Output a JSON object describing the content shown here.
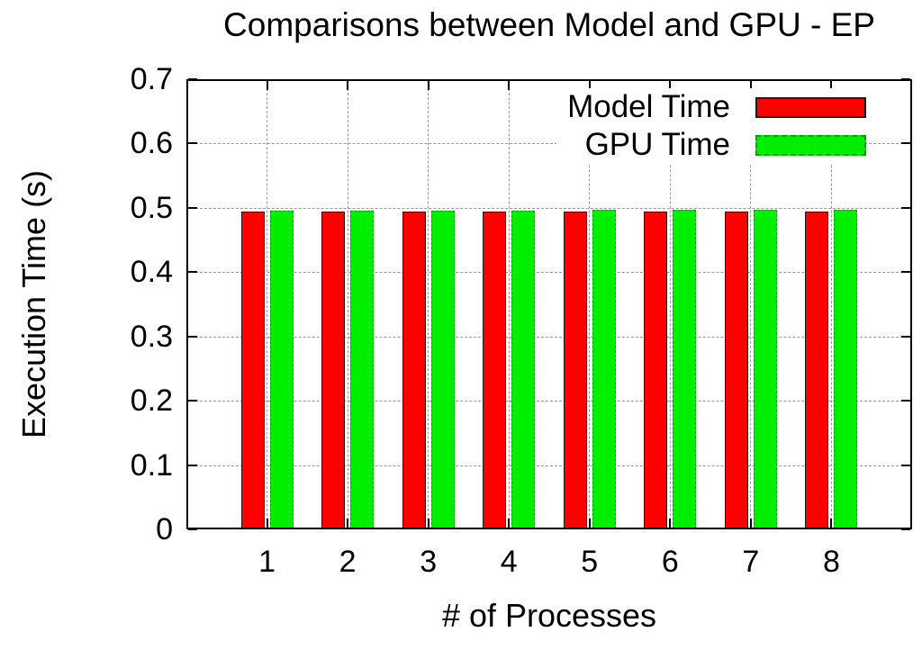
{
  "chart_data": {
    "type": "bar",
    "title": "Comparisons between Model and GPU - EP",
    "xlabel": "# of Processes",
    "ylabel": "Execution Time (s)",
    "categories": [
      "1",
      "2",
      "3",
      "4",
      "5",
      "6",
      "7",
      "8"
    ],
    "series": [
      {
        "name": "Model Time",
        "color": "#ff0000",
        "border_style": "solid",
        "border_color": "#1a1a1a",
        "values": [
          0.494,
          0.494,
          0.494,
          0.494,
          0.494,
          0.494,
          0.494,
          0.494
        ]
      },
      {
        "name": "GPU Time",
        "color": "#00ee00",
        "border_style": "dashed",
        "border_color": "#00a000",
        "values": [
          0.495,
          0.495,
          0.496,
          0.496,
          0.497,
          0.497,
          0.497,
          0.497
        ]
      }
    ],
    "ylim": [
      0,
      0.7
    ],
    "yticks": {
      "values": [
        0,
        0.1,
        0.2,
        0.3,
        0.4,
        0.5,
        0.6,
        0.7
      ],
      "labels": [
        "0",
        "0.1",
        "0.2",
        "0.3",
        "0.4",
        "0.5",
        "0.6",
        "0.7"
      ]
    },
    "grid": true,
    "grid_color": "#999999",
    "frame_color": "#000000",
    "background_color": "#ffffff",
    "legend_position": "top-right-inside"
  }
}
